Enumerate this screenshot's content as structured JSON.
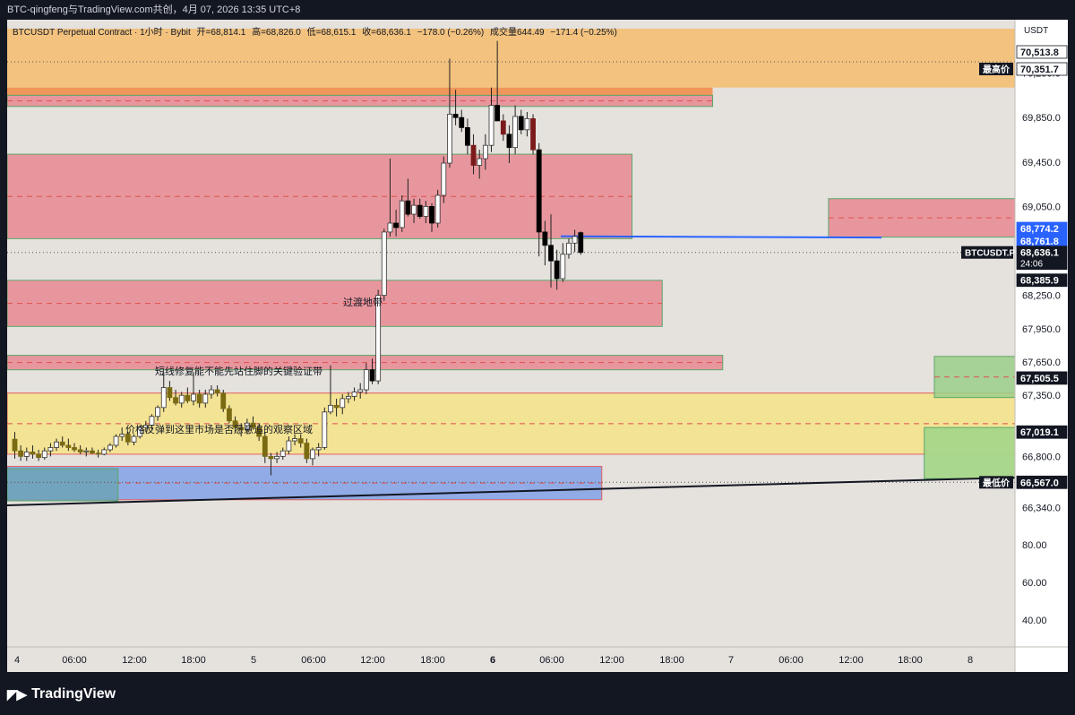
{
  "header": {
    "caption": "BTC-qingfeng与TradingView.com共创，4月 07, 2026 13:35 UTC+8"
  },
  "legend": {
    "symbol": "BTCUSDT Perpetual Contract · 1小时 · Bybit",
    "open": "开=68,814.1",
    "high": "高=68,826.0",
    "low": "低=68,615.1",
    "close": "收=68,636.1",
    "change": "−178.0 (−0.26%)",
    "volume": "成交量644.49",
    "volume_change": "−171.4 (−0.25%)"
  },
  "price_axis": {
    "currency": "USDT",
    "ticks": [
      "70,250.0",
      "69,850.0",
      "69,450.0",
      "69,050.0",
      "68,250.0",
      "67,950.0",
      "67,650.0",
      "67,350.0",
      "66,800.0",
      "66,340.0"
    ],
    "volume_ticks": [
      "80.00",
      "60.00",
      "40.00"
    ]
  },
  "price_tags": [
    {
      "label": "",
      "value": "70,513.8",
      "price": 70513.8,
      "bg": "#ffffff",
      "fg": "#131722"
    },
    {
      "label": "最高价",
      "value": "70,351.7",
      "price": 70351.7,
      "bg": "#ffffff",
      "fg": "#131722"
    },
    {
      "label": "",
      "value": "68,774.2",
      "price": 68774.2,
      "bg": "#2962ff",
      "fg": "#ffffff"
    },
    {
      "label": "",
      "value": "68,761.8",
      "price": 68761.8,
      "bg": "#2962ff",
      "fg": "#ffffff"
    },
    {
      "label": "BTCUSDT.P",
      "value": "68,636.1",
      "sub": "24:06",
      "price": 68636.1,
      "bg": "#131722",
      "fg": "#ffffff"
    },
    {
      "label": "",
      "value": "68,385.9",
      "price": 68385.9,
      "bg": "#131722",
      "fg": "#ffffff"
    },
    {
      "label": "",
      "value": "67,505.5",
      "price": 67505.5,
      "bg": "#131722",
      "fg": "#ffffff"
    },
    {
      "label": "",
      "value": "67,019.1",
      "price": 67019.1,
      "bg": "#131722",
      "fg": "#ffffff"
    },
    {
      "label": "最低价",
      "value": "66,567.0",
      "price": 66567.0,
      "bg": "#131722",
      "fg": "#ffffff"
    }
  ],
  "time_axis": {
    "ticks": [
      {
        "label": "4",
        "bold": false
      },
      {
        "label": "06:00",
        "bold": false
      },
      {
        "label": "12:00",
        "bold": false
      },
      {
        "label": "18:00",
        "bold": false
      },
      {
        "label": "5",
        "bold": false
      },
      {
        "label": "06:00",
        "bold": false
      },
      {
        "label": "12:00",
        "bold": false
      },
      {
        "label": "18:00",
        "bold": false
      },
      {
        "label": "6",
        "bold": true
      },
      {
        "label": "06:00",
        "bold": false
      },
      {
        "label": "12:00",
        "bold": false
      },
      {
        "label": "18:00",
        "bold": false
      },
      {
        "label": "7",
        "bold": false
      },
      {
        "label": "06:00",
        "bold": false
      },
      {
        "label": "12:00",
        "bold": false
      },
      {
        "label": "18:00",
        "bold": false
      },
      {
        "label": "8",
        "bold": false
      }
    ]
  },
  "annotations": {
    "zone_transition": "过渡地带",
    "zone_short_repair": "短线修复能不能先站住脚的关键验证带",
    "zone_observe": "价格反弹到这里市场是否愿意追的观察区域"
  },
  "branding": {
    "logo_text": "TradingView"
  },
  "colors": {
    "background": "#e5e1dd",
    "bull_body": "#ffffff",
    "bear_body": "#000000",
    "bear_alt": "#7b1a1a",
    "olive": "#7a6b12",
    "zone_red": "#e88e97",
    "zone_orange": "#f2c078",
    "zone_yellow": "#f3e38f",
    "zone_blue": "#86a5e6",
    "zone_green": "#9ccf8a",
    "blue_line": "#2962ff"
  },
  "chart_data": {
    "type": "candlestick",
    "title": "BTCUSDT Perpetual Contract · 1小时 · Bybit",
    "ylim": [
      66150,
      70650
    ],
    "zones": [
      {
        "name": "supply-top-orange",
        "from": 70120,
        "to": 70650,
        "t0": 0,
        "t1": 1.0,
        "color": "orange"
      },
      {
        "name": "supply-orange-strip",
        "from": 70050,
        "to": 70120,
        "t0": 0,
        "t1": 0.7,
        "color": "orange-dark"
      },
      {
        "name": "supply-red-top",
        "from": 69950,
        "to": 70050,
        "t0": 0,
        "t1": 0.7,
        "color": "red"
      },
      {
        "name": "supply-red-main",
        "from": 68760,
        "to": 69520,
        "t0": 0,
        "t1": 0.62,
        "color": "red"
      },
      {
        "name": "supply-red-right",
        "from": 68774,
        "to": 69120,
        "t0": 0.815,
        "t1": 1.0,
        "color": "red"
      },
      {
        "name": "transition-zone",
        "from": 67970,
        "to": 68385,
        "t0": 0,
        "t1": 0.65,
        "color": "red"
      },
      {
        "name": "short-repair-zone",
        "from": 67580,
        "to": 67710,
        "t0": 0,
        "t1": 0.71,
        "color": "red"
      },
      {
        "name": "observe-zone",
        "from": 66820,
        "to": 67370,
        "t0": 0,
        "t1": 1.0,
        "color": "yellow"
      },
      {
        "name": "green-zone-upper",
        "from": 67330,
        "to": 67700,
        "t0": 0.92,
        "t1": 1.0,
        "color": "green"
      },
      {
        "name": "green-zone-lower",
        "from": 66600,
        "to": 67060,
        "t0": 0.91,
        "t1": 1.0,
        "color": "green-strong"
      },
      {
        "name": "demand-blue",
        "from": 66410,
        "to": 66710,
        "t0": 0,
        "t1": 0.59,
        "color": "blue"
      },
      {
        "name": "demand-blue-green",
        "from": 66400,
        "to": 66690,
        "t0": 0,
        "t1": 0.11,
        "color": "teal"
      }
    ],
    "candles_note": "approximate OHLC read from the chart, hourly from Apr 4 to Apr 7",
    "candles": [
      [
        66955,
        67020,
        66780,
        66850
      ],
      [
        66850,
        66900,
        66760,
        66800
      ],
      [
        66800,
        66880,
        66760,
        66840
      ],
      [
        66840,
        66900,
        66780,
        66820
      ],
      [
        66820,
        66860,
        66760,
        66790
      ],
      [
        66790,
        66880,
        66770,
        66850
      ],
      [
        66850,
        66920,
        66800,
        66880
      ],
      [
        66880,
        66960,
        66850,
        66930
      ],
      [
        66930,
        66980,
        66880,
        66900
      ],
      [
        66900,
        66960,
        66850,
        66880
      ],
      [
        66880,
        66920,
        66840,
        66860
      ],
      [
        66860,
        66900,
        66820,
        66840
      ],
      [
        66840,
        66880,
        66800,
        66850
      ],
      [
        66850,
        66880,
        66820,
        66830
      ],
      [
        66830,
        66860,
        66790,
        66820
      ],
      [
        66820,
        66880,
        66810,
        66860
      ],
      [
        66860,
        66920,
        66840,
        66900
      ],
      [
        66900,
        67000,
        66880,
        66980
      ],
      [
        66980,
        67060,
        66940,
        67000
      ],
      [
        67000,
        67020,
        66900,
        66930
      ],
      [
        66930,
        67000,
        66900,
        66980
      ],
      [
        66980,
        67080,
        66960,
        67060
      ],
      [
        67060,
        67120,
        67020,
        67080
      ],
      [
        67080,
        67180,
        67040,
        67160
      ],
      [
        67160,
        67260,
        67120,
        67240
      ],
      [
        67240,
        67560,
        67200,
        67420
      ],
      [
        67420,
        67480,
        67300,
        67330
      ],
      [
        67330,
        67400,
        67260,
        67280
      ],
      [
        67280,
        67380,
        67240,
        67350
      ],
      [
        67350,
        67420,
        67280,
        67300
      ],
      [
        67300,
        67560,
        67260,
        67360
      ],
      [
        67360,
        67400,
        67240,
        67280
      ],
      [
        67280,
        67400,
        67240,
        67360
      ],
      [
        67360,
        67440,
        67320,
        67400
      ],
      [
        67400,
        67440,
        67340,
        67370
      ],
      [
        67370,
        67400,
        67200,
        67230
      ],
      [
        67230,
        67260,
        67100,
        67120
      ],
      [
        67120,
        67160,
        67020,
        67060
      ],
      [
        67060,
        67100,
        66980,
        67040
      ],
      [
        67040,
        67140,
        67000,
        67100
      ],
      [
        67100,
        67160,
        67040,
        67060
      ],
      [
        67060,
        67100,
        66940,
        66980
      ],
      [
        66980,
        67020,
        66740,
        66800
      ],
      [
        66800,
        66830,
        66630,
        66780
      ],
      [
        66780,
        66840,
        66740,
        66800
      ],
      [
        66800,
        66880,
        66770,
        66850
      ],
      [
        66850,
        66980,
        66820,
        66940
      ],
      [
        66940,
        67000,
        66900,
        66960
      ],
      [
        66960,
        67000,
        66880,
        66920
      ],
      [
        66920,
        66960,
        66740,
        66780
      ],
      [
        66780,
        66880,
        66720,
        66860
      ],
      [
        66860,
        66920,
        66800,
        66880
      ],
      [
        66880,
        67240,
        66860,
        67200
      ],
      [
        67200,
        67620,
        67180,
        67260
      ],
      [
        67260,
        67320,
        67160,
        67240
      ],
      [
        67240,
        67360,
        67180,
        67320
      ],
      [
        67320,
        67380,
        67280,
        67340
      ],
      [
        67340,
        67420,
        67300,
        67380
      ],
      [
        67380,
        67460,
        67320,
        67400
      ],
      [
        67400,
        67640,
        67360,
        67580
      ],
      [
        67580,
        67680,
        67450,
        67480
      ],
      [
        67480,
        68300,
        67450,
        68250
      ],
      [
        68250,
        68850,
        68200,
        68820
      ],
      [
        68820,
        69480,
        68780,
        68900
      ],
      [
        68900,
        69020,
        68780,
        68860
      ],
      [
        68860,
        69150,
        68820,
        69100
      ],
      [
        69100,
        69300,
        68960,
        68980
      ],
      [
        68980,
        69120,
        68900,
        69060
      ],
      [
        69060,
        69120,
        68940,
        68960
      ],
      [
        68960,
        69100,
        68900,
        69050
      ],
      [
        69050,
        69080,
        68820,
        68900
      ],
      [
        68900,
        69200,
        68860,
        69150
      ],
      [
        69150,
        69500,
        69080,
        69440
      ],
      [
        69440,
        70380,
        69400,
        69880
      ],
      [
        69880,
        70100,
        69780,
        69850
      ],
      [
        69850,
        69920,
        69720,
        69760
      ],
      [
        69760,
        69840,
        69520,
        69600
      ],
      [
        69600,
        69700,
        69340,
        69420
      ],
      [
        69420,
        69560,
        69300,
        69480
      ],
      [
        69480,
        69700,
        69380,
        69600
      ],
      [
        69600,
        70120,
        69540,
        69960
      ],
      [
        69960,
        70540,
        69820,
        69820
      ],
      [
        69820,
        69880,
        69640,
        69700
      ],
      [
        69700,
        69780,
        69440,
        69580
      ],
      [
        69580,
        69960,
        69520,
        69860
      ],
      [
        69860,
        69920,
        69700,
        69740
      ],
      [
        69740,
        69900,
        69680,
        69840
      ],
      [
        69840,
        69880,
        69520,
        69560
      ],
      [
        69560,
        69620,
        68600,
        68820
      ],
      [
        68820,
        68920,
        68520,
        68700
      ],
      [
        68700,
        68980,
        68320,
        68560
      ],
      [
        68560,
        68660,
        68300,
        68400
      ],
      [
        68400,
        68720,
        68370,
        68620
      ],
      [
        68620,
        68760,
        68580,
        68720
      ],
      [
        68720,
        68840,
        68640,
        68780
      ],
      [
        68814,
        68826,
        68615,
        68636
      ]
    ]
  }
}
